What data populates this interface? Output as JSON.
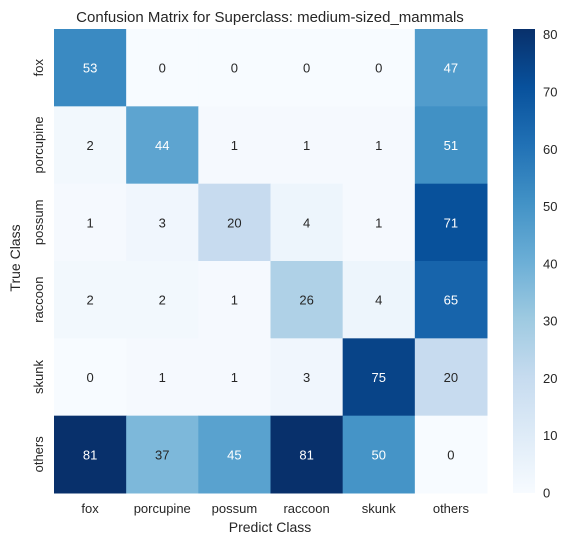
{
  "chart_data": {
    "type": "heatmap",
    "title": "Confusion Matrix for Superclass: medium-sized_mammals",
    "xlabel": "Predict Class",
    "ylabel": "True Class",
    "x_categories": [
      "fox",
      "porcupine",
      "possum",
      "raccoon",
      "skunk",
      "others"
    ],
    "y_categories": [
      "fox",
      "porcupine",
      "possum",
      "raccoon",
      "skunk",
      "others"
    ],
    "values": [
      [
        53,
        0,
        0,
        0,
        0,
        47
      ],
      [
        2,
        44,
        1,
        1,
        1,
        51
      ],
      [
        1,
        3,
        20,
        4,
        1,
        71
      ],
      [
        2,
        2,
        1,
        26,
        4,
        65
      ],
      [
        0,
        1,
        1,
        3,
        75,
        20
      ],
      [
        81,
        37,
        45,
        81,
        50,
        0
      ]
    ],
    "colormap": "Blues",
    "vmin": 0,
    "vmax": 81,
    "colorbar_ticks": [
      0,
      10,
      20,
      30,
      40,
      50,
      60,
      70,
      80
    ],
    "colors": {
      "low": "#f7fbff",
      "high": "#08306b"
    }
  }
}
